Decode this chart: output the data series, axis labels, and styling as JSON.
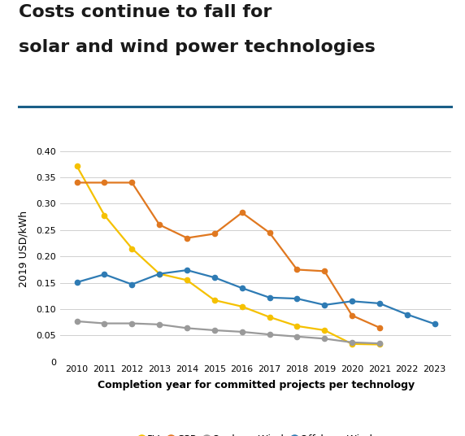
{
  "title_line1": "Costs continue to fall for",
  "title_line2": "solar and wind power technologies",
  "xlabel": "Completion year for committed projects per technology",
  "ylabel": "2019 USD/kWh",
  "years": [
    2010,
    2011,
    2012,
    2013,
    2014,
    2015,
    2016,
    2017,
    2018,
    2019,
    2020,
    2021,
    2022,
    2023
  ],
  "PV": [
    0.371,
    0.278,
    0.215,
    0.167,
    0.155,
    0.117,
    0.105,
    0.085,
    0.068,
    0.06,
    0.034,
    0.033,
    null,
    null
  ],
  "CSP": [
    0.34,
    0.34,
    0.34,
    0.26,
    0.235,
    0.243,
    0.283,
    0.245,
    0.175,
    0.172,
    0.088,
    0.065,
    null,
    null
  ],
  "Onshore_Wind": [
    0.077,
    0.073,
    0.073,
    0.071,
    0.064,
    0.06,
    0.057,
    0.052,
    0.048,
    0.044,
    0.037,
    0.035,
    null,
    null
  ],
  "Offshore_Wind": [
    0.151,
    0.166,
    0.147,
    0.167,
    0.174,
    0.16,
    0.14,
    0.122,
    0.12,
    0.108,
    0.115,
    0.111,
    0.09,
    0.072
  ],
  "PV_color": "#F5C100",
  "CSP_color": "#E07820",
  "Onshore_Wind_color": "#9A9A9A",
  "Offshore_Wind_color": "#2E7BB4",
  "yticks": [
    0,
    0.05,
    0.1,
    0.15,
    0.2,
    0.25,
    0.3,
    0.35,
    0.4
  ],
  "ylim": [
    0,
    0.43
  ],
  "separator_color": "#1A5E87",
  "background_color": "#FFFFFF",
  "title_fontsize": 16,
  "tick_fontsize": 8,
  "ylabel_fontsize": 9,
  "xlabel_fontsize": 9,
  "legend_fontsize": 9
}
